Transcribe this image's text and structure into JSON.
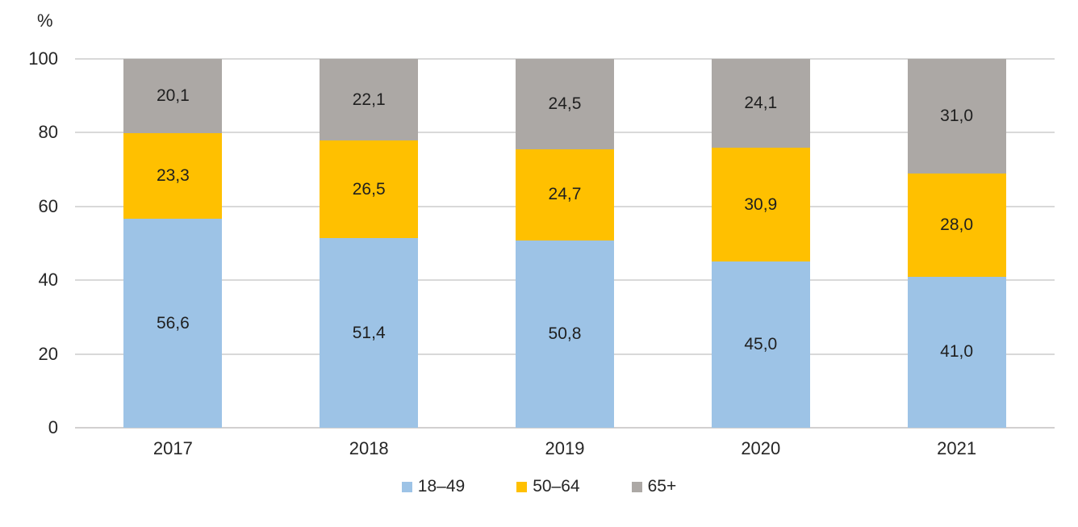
{
  "chart_data": {
    "type": "bar",
    "stacked": true,
    "unit_label": "%",
    "categories": [
      "2017",
      "2018",
      "2019",
      "2020",
      "2021"
    ],
    "series": [
      {
        "name": "18–49",
        "color": "#9DC3E6",
        "values": [
          56.6,
          51.4,
          50.8,
          45.0,
          41.0
        ],
        "labels": [
          "56,6",
          "51,4",
          "50,8",
          "45,0",
          "41,0"
        ]
      },
      {
        "name": "50–64",
        "color": "#FFC000",
        "values": [
          23.3,
          26.5,
          24.7,
          30.9,
          28.0
        ],
        "labels": [
          "23,3",
          "26,5",
          "24,7",
          "30,9",
          "28,0"
        ]
      },
      {
        "name": "65+",
        "color": "#ACA8A5",
        "values": [
          20.1,
          22.1,
          24.5,
          24.1,
          31.0
        ],
        "labels": [
          "20,1",
          "22,1",
          "24,5",
          "24,1",
          "31,0"
        ]
      }
    ],
    "y_axis": {
      "min": 0,
      "max": 100,
      "tick_step": 20,
      "tick_labels": [
        "0",
        "20",
        "40",
        "60",
        "80",
        "100"
      ],
      "gridlines": true
    },
    "legend_position": "bottom",
    "colors": {
      "gridline": "#D9D9D9",
      "axis_line": "#D2D0D0",
      "label_text": "#1F1F1F",
      "axis_text": "#262626",
      "background": "#FFFFFF"
    }
  }
}
